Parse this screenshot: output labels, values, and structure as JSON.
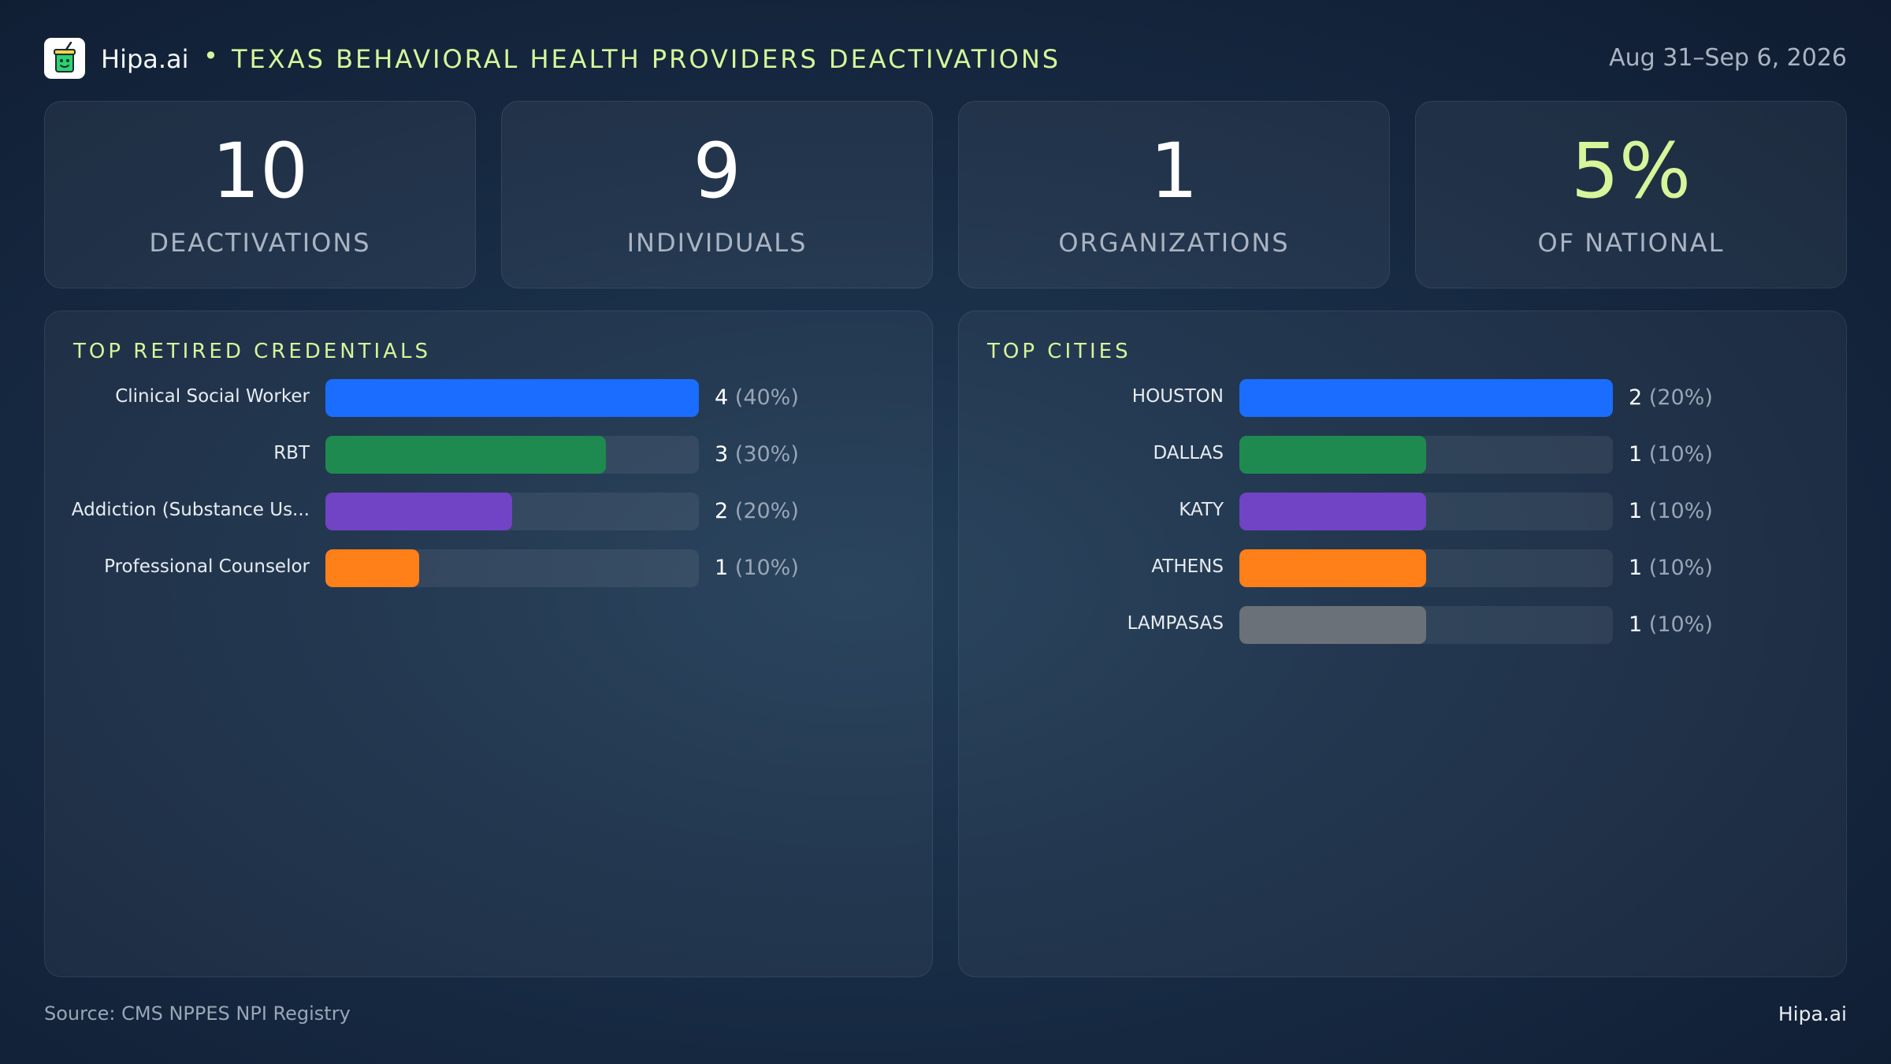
{
  "header": {
    "brand": "Hipa.ai",
    "separator": "•",
    "title": "TEXAS BEHAVIORAL HEALTH PROVIDERS DEACTIVATIONS",
    "date": "Aug 31–Sep 6, 2026"
  },
  "kpis": [
    {
      "value": "10",
      "label": "DEACTIVATIONS"
    },
    {
      "value": "9",
      "label": "INDIVIDUALS"
    },
    {
      "value": "1",
      "label": "ORGANIZATIONS"
    },
    {
      "value": "5%",
      "label": "OF NATIONAL"
    }
  ],
  "colors": [
    "#1a6dff",
    "#1e8a50",
    "#7044c4",
    "#ff7f19",
    "#6b7178"
  ],
  "chart_data": [
    {
      "type": "bar",
      "orientation": "horizontal",
      "title": "TOP RETIRED CREDENTIALS",
      "categories": [
        "Clinical Social Worker",
        "RBT",
        "Addiction (Substance Us...",
        "Professional Counselor"
      ],
      "values": [
        4,
        3,
        2,
        1
      ],
      "labels": [
        "4",
        "3",
        "2",
        "1"
      ],
      "percents": [
        "(40%)",
        "(30%)",
        "(20%)",
        "(10%)"
      ],
      "xlim": [
        0,
        4
      ]
    },
    {
      "type": "bar",
      "orientation": "horizontal",
      "title": "TOP CITIES",
      "categories": [
        "HOUSTON",
        "DALLAS",
        "KATY",
        "ATHENS",
        "LAMPASAS"
      ],
      "values": [
        2,
        1,
        1,
        1,
        1
      ],
      "labels": [
        "2",
        "1",
        "1",
        "1",
        "1"
      ],
      "percents": [
        "(20%)",
        "(10%)",
        "(10%)",
        "(10%)",
        "(10%)"
      ],
      "xlim": [
        0,
        2
      ]
    }
  ],
  "footer": {
    "source": "Source: CMS NPPES NPI Registry",
    "brand": "Hipa.ai"
  }
}
